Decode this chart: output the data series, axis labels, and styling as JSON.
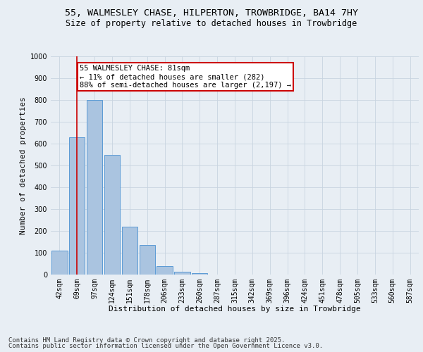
{
  "title_line1": "55, WALMESLEY CHASE, HILPERTON, TROWBRIDGE, BA14 7HY",
  "title_line2": "Size of property relative to detached houses in Trowbridge",
  "xlabel": "Distribution of detached houses by size in Trowbridge",
  "ylabel": "Number of detached properties",
  "categories": [
    "42sqm",
    "69sqm",
    "97sqm",
    "124sqm",
    "151sqm",
    "178sqm",
    "206sqm",
    "233sqm",
    "260sqm",
    "287sqm",
    "315sqm",
    "342sqm",
    "369sqm",
    "396sqm",
    "424sqm",
    "451sqm",
    "478sqm",
    "505sqm",
    "533sqm",
    "560sqm",
    "587sqm"
  ],
  "values": [
    110,
    630,
    800,
    548,
    220,
    135,
    40,
    12,
    8,
    0,
    0,
    0,
    0,
    0,
    0,
    0,
    0,
    0,
    0,
    0,
    0
  ],
  "bar_color": "#aac4e0",
  "bar_edge_color": "#5b9bd5",
  "property_line_x": 1.0,
  "annotation_text": "55 WALMESLEY CHASE: 81sqm\n← 11% of detached houses are smaller (282)\n88% of semi-detached houses are larger (2,197) →",
  "annotation_box_color": "#ffffff",
  "annotation_border_color": "#cc0000",
  "vline_color": "#cc0000",
  "ylim": [
    0,
    1000
  ],
  "yticks": [
    0,
    100,
    200,
    300,
    400,
    500,
    600,
    700,
    800,
    900,
    1000
  ],
  "grid_color": "#c8d4e0",
  "bg_color": "#e8eef4",
  "footer_line1": "Contains HM Land Registry data © Crown copyright and database right 2025.",
  "footer_line2": "Contains public sector information licensed under the Open Government Licence v3.0.",
  "title_fontsize": 9.5,
  "subtitle_fontsize": 8.5,
  "axis_label_fontsize": 8,
  "tick_fontsize": 7,
  "annotation_fontsize": 7.5,
  "footer_fontsize": 6.5
}
